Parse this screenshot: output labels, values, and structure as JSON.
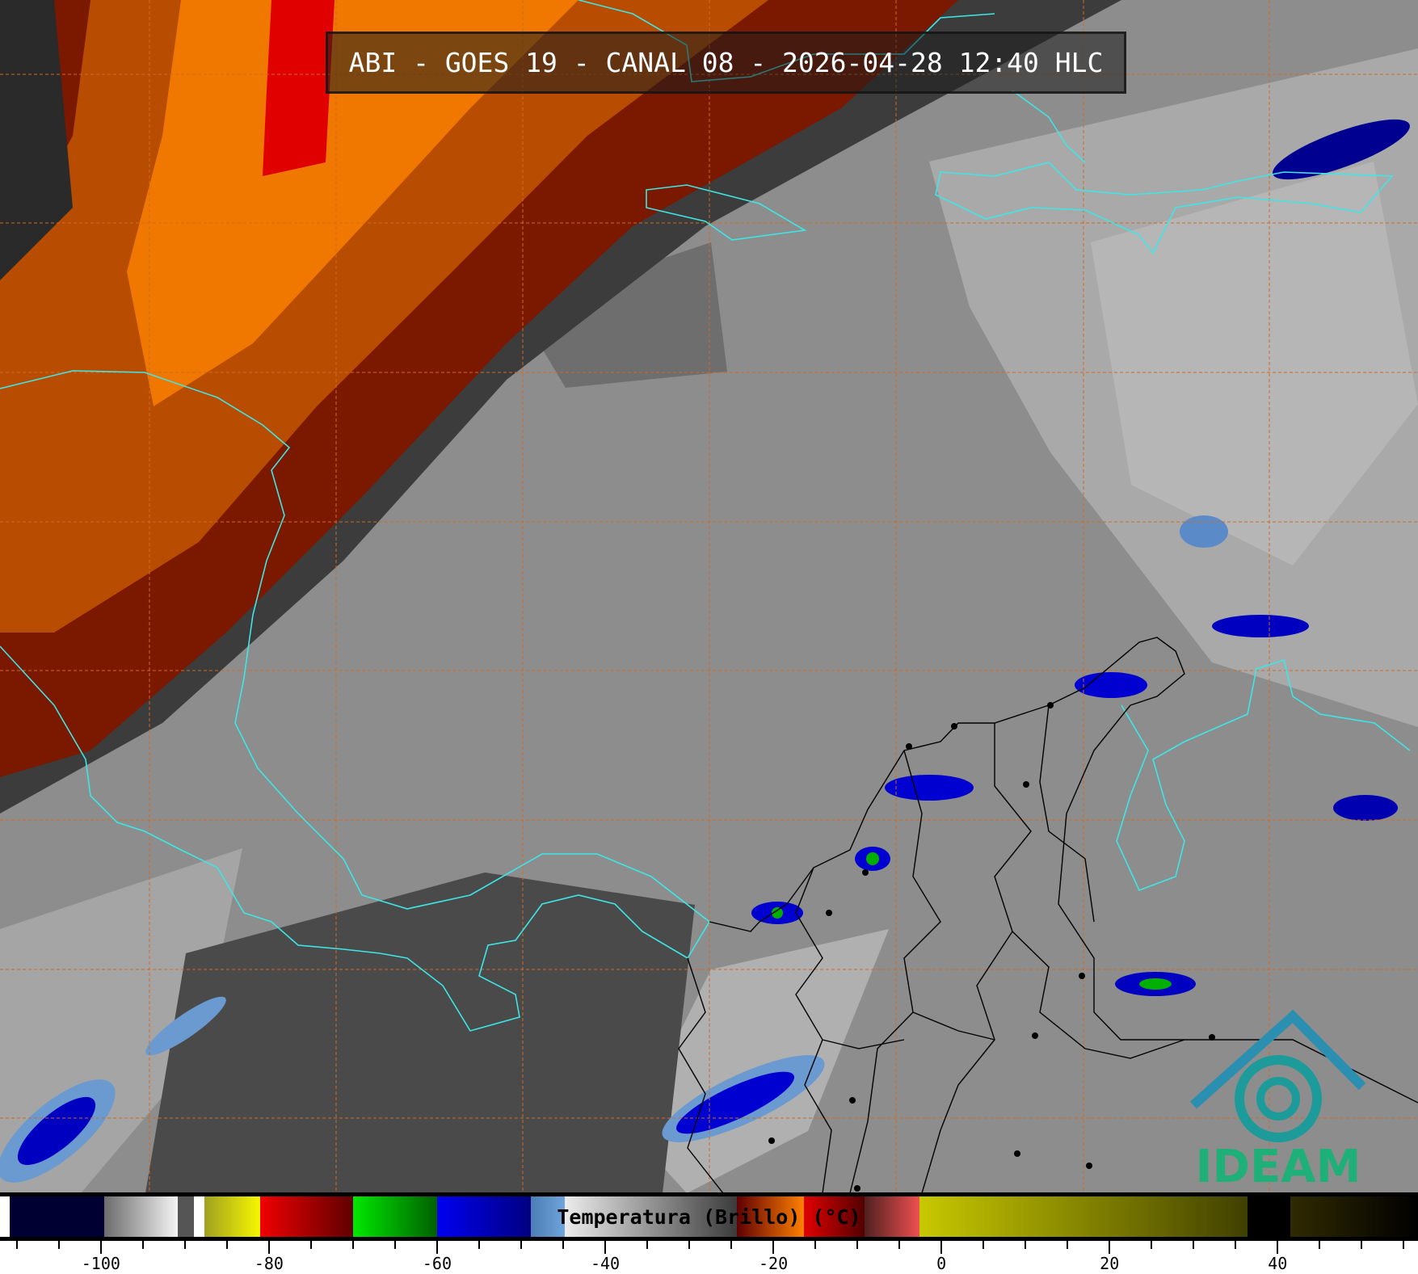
{
  "title": "ABI - GOES 19 - CANAL 08 - 2026-04-28 12:40 HLC",
  "logo": {
    "text": "IDEAM",
    "roof_color": "#2a8fb0",
    "text_color": "#1fb07a"
  },
  "colorbar": {
    "label": "Temperatura (Brillo) (°C)",
    "range": [
      -112,
      56.7
    ],
    "major_ticks": [
      -100,
      -80,
      -60,
      -40,
      -20,
      0,
      20,
      40
    ],
    "minor_step": 5,
    "segments": [
      {
        "from": -112,
        "to": -110.8,
        "colors": [
          "#ffffff",
          "#ffffff"
        ]
      },
      {
        "from": -110.8,
        "to": -99.6,
        "colors": [
          "#000033",
          "#000033"
        ]
      },
      {
        "from": -99.6,
        "to": -90.9,
        "colors": [
          "#6c6c6c",
          "#f4f4f4"
        ]
      },
      {
        "from": -90.9,
        "to": -88.9,
        "colors": [
          "#555555",
          "#555555"
        ]
      },
      {
        "from": -88.9,
        "to": -87.7,
        "colors": [
          "#ffffff",
          "#ffffff"
        ]
      },
      {
        "from": -87.7,
        "to": -81,
        "colors": [
          "#a0a020",
          "#f8f800"
        ]
      },
      {
        "from": -81,
        "to": -70,
        "colors": [
          "#f00000",
          "#600000"
        ]
      },
      {
        "from": -70,
        "to": -60,
        "colors": [
          "#00e800",
          "#006000"
        ]
      },
      {
        "from": -60,
        "to": -48.8,
        "colors": [
          "#0000f0",
          "#000080"
        ]
      },
      {
        "from": -48.8,
        "to": -44.8,
        "colors": [
          "#4a7eb4",
          "#70a4dc"
        ]
      },
      {
        "from": -44.8,
        "to": -24.3,
        "colors": [
          "#ececec",
          "#3a3a3a"
        ]
      },
      {
        "from": -24.3,
        "to": -16.4,
        "colors": [
          "#600000",
          "#ff8000"
        ]
      },
      {
        "from": -16.4,
        "to": -9.1,
        "colors": [
          "#e00000",
          "#500000"
        ]
      },
      {
        "from": -9.1,
        "to": -2.6,
        "colors": [
          "#502020",
          "#f05050"
        ]
      },
      {
        "from": -2.6,
        "to": 36.4,
        "colors": [
          "#c8c800",
          "#404000"
        ]
      },
      {
        "from": 36.4,
        "to": 41.5,
        "colors": [
          "#000000",
          "#000000"
        ]
      },
      {
        "from": 41.5,
        "to": 56.7,
        "colors": [
          "#302a00",
          "#000000"
        ]
      }
    ]
  }
}
